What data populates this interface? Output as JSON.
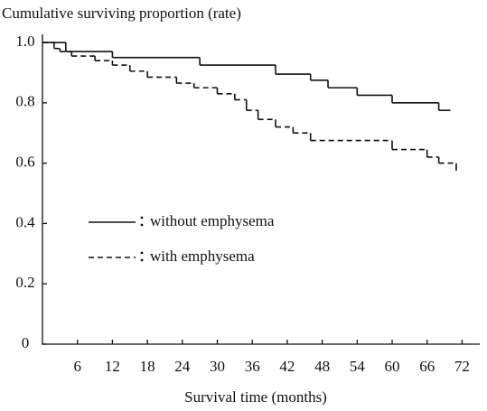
{
  "chart_data": {
    "type": "line",
    "step": "post",
    "ylabel": "Cumulative surviving proportion (rate)",
    "xlabel": "Survival time (months)",
    "xlim": [
      0,
      75
    ],
    "ylim": [
      0,
      1.03
    ],
    "xticks": [
      6,
      12,
      18,
      24,
      30,
      36,
      42,
      48,
      54,
      60,
      66,
      72
    ],
    "yticks": [
      0,
      0.2,
      0.4,
      0.6,
      0.8,
      {
        "value": 1,
        "label": "1.0"
      }
    ],
    "grid": false,
    "legend": "center-left",
    "series": [
      {
        "name": "without emphysema",
        "color": "#111111",
        "line_style": "solid",
        "x": [
          0,
          4,
          12,
          27,
          40,
          46,
          49,
          54,
          60,
          68,
          70
        ],
        "values": [
          1,
          0.97,
          0.95,
          0.925,
          0.895,
          0.875,
          0.85,
          0.825,
          0.8,
          0.775,
          0.775
        ]
      },
      {
        "name": "with emphysema",
        "color": "#111111",
        "line_style": "dashed",
        "x": [
          0,
          2,
          3,
          5,
          9,
          12,
          15,
          18,
          23,
          26,
          30,
          33,
          35,
          37,
          40,
          43,
          46,
          60,
          66,
          68,
          71
        ],
        "values": [
          1,
          0.98,
          0.97,
          0.955,
          0.94,
          0.925,
          0.905,
          0.885,
          0.865,
          0.85,
          0.83,
          0.81,
          0.775,
          0.745,
          0.72,
          0.7,
          0.675,
          0.645,
          0.62,
          0.6,
          0.575
        ]
      }
    ]
  }
}
